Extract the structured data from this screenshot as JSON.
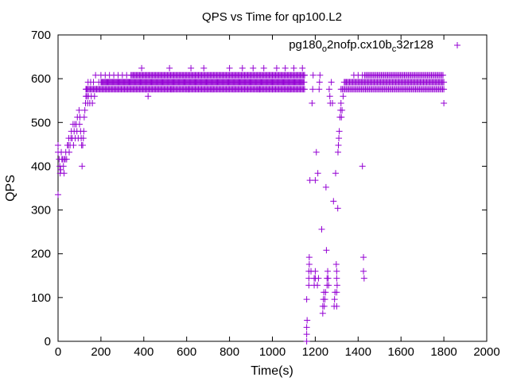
{
  "chart_data": {
    "type": "scatter",
    "title": "QPS vs Time for qp100.L2",
    "xlabel": "Time(s)",
    "ylabel": "QPS",
    "xlim": [
      0,
      2000
    ],
    "ylim": [
      0,
      700
    ],
    "xticks": [
      "0",
      "200",
      "400",
      "600",
      "800",
      "1000",
      "1200",
      "1400",
      "1600",
      "1800",
      "2000"
    ],
    "yticks": [
      "0",
      "100",
      "200",
      "300",
      "400",
      "500",
      "600",
      "700"
    ],
    "legend": {
      "position": "top-right",
      "parts": [
        {
          "text": "pg180",
          "sub": false
        },
        {
          "text": "o",
          "sub": true
        },
        {
          "text": "2nofp.cx10b",
          "sub": false
        },
        {
          "text": "c",
          "sub": true
        },
        {
          "text": "32r128",
          "sub": false
        }
      ]
    },
    "series": [
      {
        "name": "pg180_o2nofp.cx10b_c32r128",
        "color": "#9400d3",
        "marker": "+",
        "bands": [
          {
            "x0": 130,
            "x1": 1150,
            "y": 576,
            "step": 5
          },
          {
            "x0": 200,
            "x1": 1150,
            "y": 592,
            "step": 4
          },
          {
            "x0": 340,
            "x1": 1150,
            "y": 608,
            "step": 5
          },
          {
            "x0": 1320,
            "x1": 1800,
            "y": 576,
            "step": 6
          },
          {
            "x0": 1340,
            "x1": 1800,
            "y": 592,
            "step": 5
          },
          {
            "x0": 1430,
            "x1": 1800,
            "y": 608,
            "step": 6
          }
        ],
        "points": [
          [
            0,
            335
          ],
          [
            0,
            432
          ],
          [
            0,
            448
          ],
          [
            5,
            416
          ],
          [
            8,
            400
          ],
          [
            10,
            384
          ],
          [
            12,
            392
          ],
          [
            15,
            432
          ],
          [
            18,
            416
          ],
          [
            22,
            416
          ],
          [
            25,
            400
          ],
          [
            28,
            384
          ],
          [
            30,
            416
          ],
          [
            33,
            416
          ],
          [
            36,
            432
          ],
          [
            40,
            416
          ],
          [
            44,
            448
          ],
          [
            48,
            448
          ],
          [
            50,
            464
          ],
          [
            52,
            432
          ],
          [
            56,
            448
          ],
          [
            60,
            464
          ],
          [
            62,
            480
          ],
          [
            66,
            464
          ],
          [
            70,
            496
          ],
          [
            72,
            448
          ],
          [
            75,
            480
          ],
          [
            78,
            496
          ],
          [
            80,
            464
          ],
          [
            85,
            496
          ],
          [
            88,
            480
          ],
          [
            90,
            512
          ],
          [
            94,
            464
          ],
          [
            98,
            528
          ],
          [
            100,
            496
          ],
          [
            102,
            512
          ],
          [
            105,
            480
          ],
          [
            108,
            464
          ],
          [
            110,
            448
          ],
          [
            112,
            400
          ],
          [
            115,
            448
          ],
          [
            118,
            464
          ],
          [
            120,
            480
          ],
          [
            122,
            512
          ],
          [
            125,
            528
          ],
          [
            128,
            544
          ],
          [
            130,
            560
          ],
          [
            132,
            576
          ],
          [
            135,
            560
          ],
          [
            138,
            544
          ],
          [
            140,
            592
          ],
          [
            142,
            560
          ],
          [
            148,
            544
          ],
          [
            152,
            592
          ],
          [
            155,
            560
          ],
          [
            160,
            544
          ],
          [
            165,
            592
          ],
          [
            170,
            560
          ],
          [
            175,
            608
          ],
          [
            180,
            576
          ],
          [
            190,
            592
          ],
          [
            200,
            608
          ],
          [
            220,
            608
          ],
          [
            240,
            608
          ],
          [
            260,
            608
          ],
          [
            280,
            608
          ],
          [
            300,
            608
          ],
          [
            320,
            608
          ],
          [
            390,
            624
          ],
          [
            420,
            560
          ],
          [
            410,
            576
          ],
          [
            520,
            624
          ],
          [
            530,
            576
          ],
          [
            610,
            576
          ],
          [
            620,
            624
          ],
          [
            680,
            624
          ],
          [
            720,
            576
          ],
          [
            800,
            624
          ],
          [
            820,
            576
          ],
          [
            860,
            624
          ],
          [
            910,
            624
          ],
          [
            940,
            576
          ],
          [
            960,
            624
          ],
          [
            1000,
            576
          ],
          [
            1020,
            624
          ],
          [
            1060,
            624
          ],
          [
            1080,
            576
          ],
          [
            1100,
            624
          ],
          [
            1140,
            624
          ],
          [
            1150,
            608
          ],
          [
            1160,
            0
          ],
          [
            1160,
            16
          ],
          [
            1160,
            32
          ],
          [
            1162,
            48
          ],
          [
            1160,
            96
          ],
          [
            1170,
            128
          ],
          [
            1170,
            144
          ],
          [
            1170,
            160
          ],
          [
            1172,
            176
          ],
          [
            1172,
            192
          ],
          [
            1175,
            368
          ],
          [
            1180,
            160
          ],
          [
            1185,
            544
          ],
          [
            1188,
            576
          ],
          [
            1190,
            608
          ],
          [
            1195,
            128
          ],
          [
            1195,
            144
          ],
          [
            1200,
            144
          ],
          [
            1200,
            160
          ],
          [
            1200,
            368
          ],
          [
            1205,
            432
          ],
          [
            1210,
            128
          ],
          [
            1212,
            384
          ],
          [
            1215,
            144
          ],
          [
            1218,
            576
          ],
          [
            1220,
            592
          ],
          [
            1222,
            608
          ],
          [
            1230,
            256
          ],
          [
            1235,
            64
          ],
          [
            1235,
            80
          ],
          [
            1238,
            96
          ],
          [
            1240,
            112
          ],
          [
            1242,
            80
          ],
          [
            1245,
            96
          ],
          [
            1248,
            112
          ],
          [
            1250,
            352
          ],
          [
            1252,
            208
          ],
          [
            1255,
            128
          ],
          [
            1255,
            144
          ],
          [
            1258,
            160
          ],
          [
            1260,
            144
          ],
          [
            1262,
            128
          ],
          [
            1265,
            576
          ],
          [
            1268,
            560
          ],
          [
            1270,
            544
          ],
          [
            1275,
            592
          ],
          [
            1280,
            544
          ],
          [
            1285,
            320
          ],
          [
            1288,
            80
          ],
          [
            1290,
            96
          ],
          [
            1292,
            112
          ],
          [
            1295,
            384
          ],
          [
            1298,
            176
          ],
          [
            1300,
            80
          ],
          [
            1300,
            112
          ],
          [
            1300,
            144
          ],
          [
            1300,
            160
          ],
          [
            1302,
            128
          ],
          [
            1305,
            304
          ],
          [
            1306,
            432
          ],
          [
            1308,
            448
          ],
          [
            1310,
            464
          ],
          [
            1312,
            480
          ],
          [
            1315,
            512
          ],
          [
            1318,
            528
          ],
          [
            1320,
            544
          ],
          [
            1322,
            512
          ],
          [
            1325,
            528
          ],
          [
            1330,
            560
          ],
          [
            1335,
            592
          ],
          [
            1340,
            592
          ],
          [
            1380,
            608
          ],
          [
            1400,
            608
          ],
          [
            1420,
            608
          ],
          [
            1420,
            400
          ],
          [
            1425,
            192
          ],
          [
            1425,
            160
          ],
          [
            1428,
            144
          ],
          [
            1800,
            544
          ]
        ]
      }
    ]
  }
}
